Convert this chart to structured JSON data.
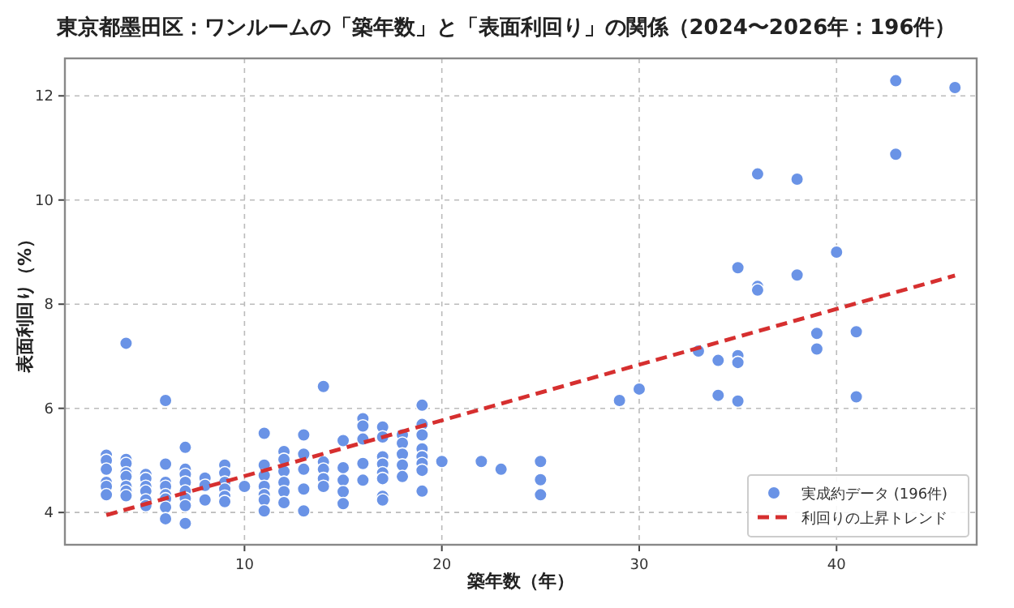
{
  "chart_data": {
    "type": "scatter",
    "title": "東京都墨田区：ワンルームの「築年数」と「表面利回り」の関係（2024〜2026年：196件）",
    "xlabel": "築年数（年）",
    "ylabel": "表面利回り（%）",
    "xlim": [
      0.9,
      47.1
    ],
    "ylim": [
      3.38,
      12.72
    ],
    "xticks": [
      10,
      20,
      30,
      40
    ],
    "yticks": [
      4,
      6,
      8,
      10,
      12
    ],
    "grid": true,
    "legend": "bottom right",
    "series": [
      {
        "name": "実成約データ (196件)",
        "type": "scatter",
        "marker": "circle",
        "color": "#6a93e6",
        "x": [
          3,
          3,
          3,
          3,
          3,
          3,
          4,
          4,
          4,
          4,
          4,
          4,
          4,
          4,
          5,
          5,
          5,
          5,
          5,
          5,
          6,
          6,
          6,
          6,
          6,
          6,
          6,
          6,
          7,
          7,
          7,
          7,
          7,
          7,
          7,
          7,
          8,
          8,
          8,
          9,
          9,
          9,
          9,
          9,
          9,
          10,
          11,
          11,
          11,
          11,
          11,
          11,
          11,
          12,
          12,
          12,
          12,
          12,
          12,
          13,
          13,
          13,
          13,
          13,
          14,
          14,
          14,
          14,
          14,
          15,
          15,
          15,
          15,
          15,
          16,
          16,
          16,
          16,
          16,
          17,
          17,
          17,
          17,
          17,
          17,
          17,
          17,
          18,
          18,
          18,
          18,
          18,
          19,
          19,
          19,
          19,
          19,
          19,
          19,
          19,
          20,
          22,
          23,
          25,
          25,
          25,
          29,
          30,
          33,
          34,
          34,
          35,
          35,
          35,
          35,
          36,
          36,
          36,
          38,
          38,
          39,
          39,
          40,
          41,
          41,
          43,
          43,
          46
        ],
        "values": [
          5.1,
          5.0,
          4.83,
          4.58,
          4.5,
          4.34,
          7.25,
          5.02,
          4.94,
          4.76,
          4.69,
          4.5,
          4.41,
          4.32,
          4.73,
          4.65,
          4.5,
          4.41,
          4.24,
          4.13,
          6.15,
          4.93,
          4.58,
          4.5,
          4.34,
          4.26,
          4.1,
          3.88,
          5.25,
          4.83,
          4.73,
          4.58,
          4.41,
          4.27,
          4.13,
          3.79,
          4.66,
          4.52,
          4.24,
          4.91,
          4.76,
          4.58,
          4.45,
          4.31,
          4.21,
          4.5,
          5.52,
          4.91,
          4.71,
          4.5,
          4.34,
          4.24,
          4.03,
          5.17,
          5.02,
          4.79,
          4.58,
          4.4,
          4.19,
          5.49,
          5.12,
          4.83,
          4.45,
          4.03,
          6.42,
          4.97,
          4.83,
          4.65,
          4.5,
          5.38,
          4.86,
          4.62,
          4.4,
          4.17,
          5.8,
          5.66,
          5.41,
          4.94,
          4.62,
          5.64,
          5.45,
          5.07,
          4.93,
          4.76,
          4.65,
          4.31,
          4.24,
          5.49,
          5.33,
          5.12,
          4.91,
          4.69,
          6.06,
          5.69,
          5.49,
          5.22,
          5.07,
          4.94,
          4.81,
          4.41,
          4.98,
          4.98,
          4.83,
          4.98,
          4.63,
          4.34,
          6.15,
          6.37,
          7.1,
          6.92,
          6.25,
          8.7,
          7.01,
          6.88,
          6.14,
          10.5,
          8.34,
          8.27,
          10.4,
          8.56,
          7.44,
          7.14,
          9.0,
          7.47,
          6.22,
          12.29,
          10.88,
          12.16
        ]
      },
      {
        "name": "利回りの上昇トレンド",
        "type": "line",
        "marker": "none",
        "line_style": "dashed",
        "color": "#d62f2f",
        "x": [
          3,
          46
        ],
        "values": [
          3.95,
          8.55
        ]
      }
    ]
  }
}
